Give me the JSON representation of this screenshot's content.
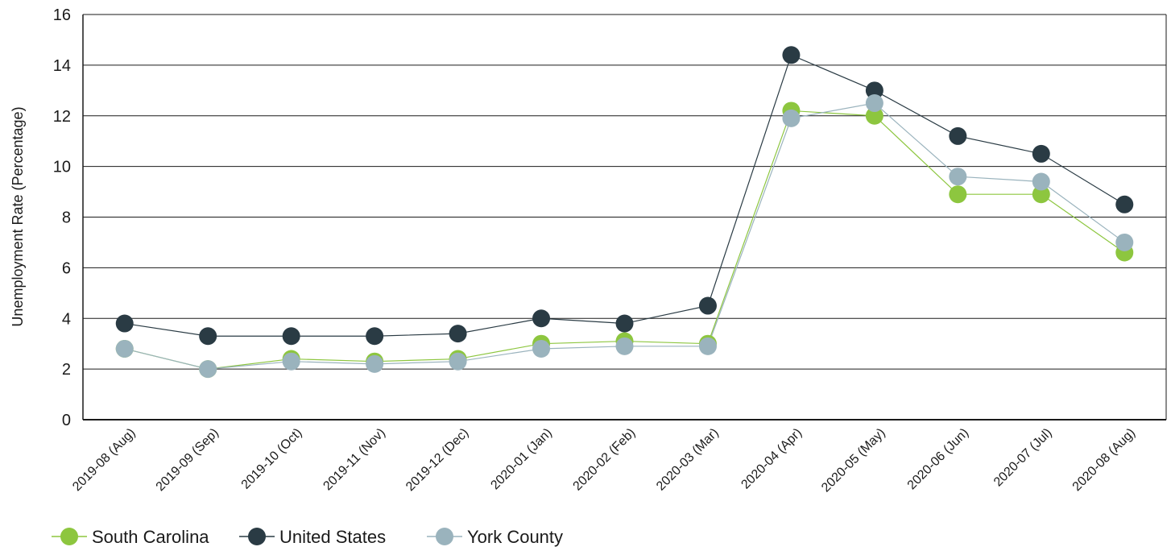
{
  "chart_data": {
    "type": "line",
    "title": "",
    "xlabel": "",
    "ylabel": "Unemployment Rate (Percentage)",
    "ylim": [
      0,
      16
    ],
    "yticks": [
      "0",
      "2",
      "4",
      "6",
      "8",
      "10",
      "12",
      "14",
      "16"
    ],
    "grid": "horizontal",
    "legend_position": "bottom-left",
    "categories": [
      "2019-08 (Aug)",
      "2019-09 (Sep)",
      "2019-10 (Oct)",
      "2019-11 (Nov)",
      "2019-12 (Dec)",
      "2020-01 (Jan)",
      "2020-02 (Feb)",
      "2020-03 (Mar)",
      "2020-04 (Apr)",
      "2020-05 (May)",
      "2020-06 (Jun)",
      "2020-07 (Jul)",
      "2020-08 (Aug)"
    ],
    "series": [
      {
        "name": "South Carolina",
        "color": "#8dc63f",
        "values": [
          2.8,
          2.0,
          2.4,
          2.3,
          2.4,
          3.0,
          3.1,
          3.0,
          12.2,
          12.0,
          8.9,
          8.9,
          6.6
        ]
      },
      {
        "name": "United States",
        "color": "#2a3b44",
        "values": [
          3.8,
          3.3,
          3.3,
          3.3,
          3.4,
          4.0,
          3.8,
          4.5,
          14.4,
          13.0,
          11.2,
          10.5,
          8.5
        ]
      },
      {
        "name": "York County",
        "color": "#9ab3bd",
        "values": [
          2.8,
          2.0,
          2.3,
          2.2,
          2.3,
          2.8,
          2.9,
          2.9,
          11.9,
          12.5,
          9.6,
          9.4,
          7.0
        ]
      }
    ]
  }
}
